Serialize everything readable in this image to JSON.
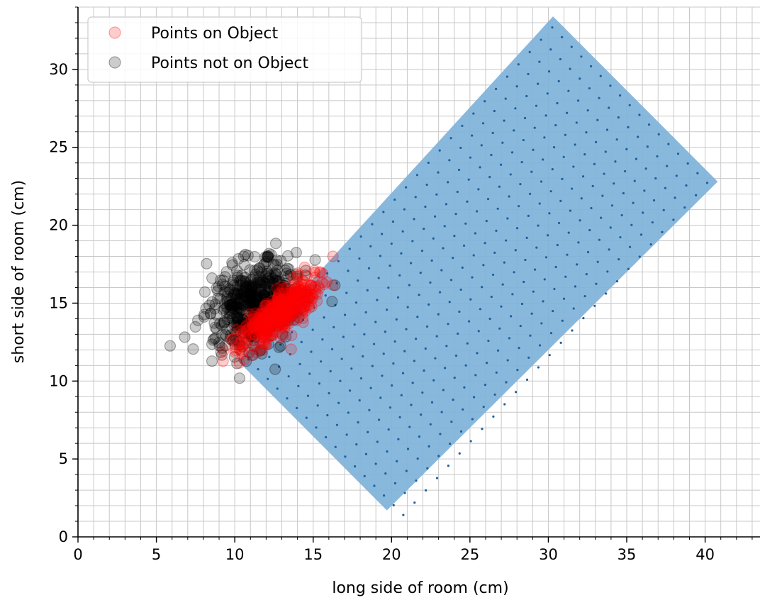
{
  "chart_data": {
    "type": "scatter",
    "title": "",
    "xlabel": "long side of room (cm)",
    "ylabel": "short side of room (cm)",
    "xlim": [
      0,
      43.5
    ],
    "ylim": [
      0,
      34
    ],
    "x_ticks": [
      0,
      5,
      10,
      15,
      20,
      25,
      30,
      35,
      40
    ],
    "y_ticks": [
      0,
      5,
      10,
      15,
      20,
      25,
      30
    ],
    "minor_grid_step": 1,
    "grid": true,
    "legend_placement": "upper-left",
    "object": {
      "shape": "rotated-rectangle",
      "color": "#7fb2da",
      "dot_color": "#1f5f9a",
      "vertices": [
        [
          30.3,
          33.4
        ],
        [
          40.8,
          22.8
        ],
        [
          19.7,
          1.7
        ],
        [
          10.2,
          11.3
        ]
      ]
    },
    "series": [
      {
        "name": "Points on Object",
        "color": "#ff0000",
        "alpha": 0.2,
        "cluster": {
          "center": [
            12.8,
            14.3
          ],
          "major_sd": 1.6,
          "minor_sd": 0.55,
          "angle_deg": 42,
          "count": 420
        }
      },
      {
        "name": "Points not on Object",
        "color": "#000000",
        "alpha": 0.2,
        "cluster": {
          "center": [
            11.3,
            15.0
          ],
          "major_sd": 1.7,
          "minor_sd": 1.2,
          "angle_deg": 40,
          "count": 520
        }
      }
    ]
  }
}
